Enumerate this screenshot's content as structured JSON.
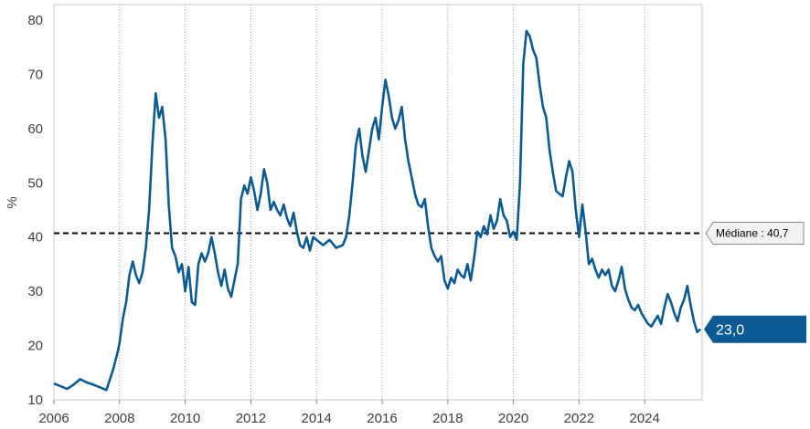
{
  "chart_data": {
    "type": "line",
    "ylabel": "%",
    "xlim": [
      2006,
      2025.75
    ],
    "ylim": [
      10,
      80
    ],
    "x_ticks": [
      "2006",
      "2008",
      "2010",
      "2012",
      "2014",
      "2016",
      "2018",
      "2020",
      "2022",
      "2024"
    ],
    "y_ticks": [
      "10",
      "20",
      "30",
      "40",
      "50",
      "60",
      "70",
      "80"
    ],
    "grid": "vertical dotted",
    "series": [
      {
        "color": "#0b5a94",
        "points": [
          [
            2006.0,
            13.0
          ],
          [
            2006.2,
            12.5
          ],
          [
            2006.4,
            12.0
          ],
          [
            2006.6,
            12.8
          ],
          [
            2006.8,
            13.8
          ],
          [
            2007.0,
            13.2
          ],
          [
            2007.2,
            12.8
          ],
          [
            2007.4,
            12.3
          ],
          [
            2007.6,
            11.8
          ],
          [
            2007.8,
            15.5
          ],
          [
            2007.95,
            19.0
          ],
          [
            2008.0,
            20.5
          ],
          [
            2008.1,
            25.0
          ],
          [
            2008.2,
            28.0
          ],
          [
            2008.3,
            33.0
          ],
          [
            2008.4,
            35.5
          ],
          [
            2008.5,
            33.0
          ],
          [
            2008.6,
            31.5
          ],
          [
            2008.7,
            33.5
          ],
          [
            2008.8,
            38.0
          ],
          [
            2008.9,
            45.0
          ],
          [
            2009.0,
            57.0
          ],
          [
            2009.1,
            66.5
          ],
          [
            2009.2,
            62.0
          ],
          [
            2009.3,
            64.0
          ],
          [
            2009.4,
            58.0
          ],
          [
            2009.5,
            46.0
          ],
          [
            2009.6,
            38.0
          ],
          [
            2009.7,
            36.5
          ],
          [
            2009.8,
            33.5
          ],
          [
            2009.9,
            35.0
          ],
          [
            2010.0,
            30.0
          ],
          [
            2010.1,
            34.5
          ],
          [
            2010.2,
            28.0
          ],
          [
            2010.3,
            27.5
          ],
          [
            2010.4,
            35.0
          ],
          [
            2010.5,
            37.0
          ],
          [
            2010.6,
            35.5
          ],
          [
            2010.7,
            37.0
          ],
          [
            2010.8,
            40.0
          ],
          [
            2010.9,
            37.0
          ],
          [
            2011.0,
            33.5
          ],
          [
            2011.1,
            31.0
          ],
          [
            2011.2,
            34.0
          ],
          [
            2011.3,
            30.5
          ],
          [
            2011.4,
            29.0
          ],
          [
            2011.5,
            32.0
          ],
          [
            2011.6,
            35.0
          ],
          [
            2011.7,
            47.0
          ],
          [
            2011.8,
            49.5
          ],
          [
            2011.9,
            48.0
          ],
          [
            2012.0,
            51.0
          ],
          [
            2012.1,
            48.5
          ],
          [
            2012.2,
            45.0
          ],
          [
            2012.3,
            48.0
          ],
          [
            2012.4,
            52.5
          ],
          [
            2012.5,
            50.0
          ],
          [
            2012.6,
            45.0
          ],
          [
            2012.7,
            46.5
          ],
          [
            2012.8,
            45.0
          ],
          [
            2012.9,
            44.0
          ],
          [
            2013.0,
            46.0
          ],
          [
            2013.1,
            43.5
          ],
          [
            2013.2,
            42.0
          ],
          [
            2013.3,
            44.5
          ],
          [
            2013.4,
            41.0
          ],
          [
            2013.5,
            38.5
          ],
          [
            2013.6,
            38.0
          ],
          [
            2013.7,
            40.0
          ],
          [
            2013.8,
            37.5
          ],
          [
            2013.9,
            40.0
          ],
          [
            2014.0,
            39.5
          ],
          [
            2014.2,
            38.5
          ],
          [
            2014.4,
            39.5
          ],
          [
            2014.6,
            38.0
          ],
          [
            2014.8,
            38.5
          ],
          [
            2014.9,
            40.0
          ],
          [
            2015.0,
            44.0
          ],
          [
            2015.1,
            50.0
          ],
          [
            2015.2,
            57.0
          ],
          [
            2015.3,
            60.0
          ],
          [
            2015.4,
            55.0
          ],
          [
            2015.5,
            52.0
          ],
          [
            2015.6,
            56.0
          ],
          [
            2015.7,
            60.0
          ],
          [
            2015.8,
            62.0
          ],
          [
            2015.9,
            58.0
          ],
          [
            2016.0,
            64.0
          ],
          [
            2016.1,
            69.0
          ],
          [
            2016.2,
            66.0
          ],
          [
            2016.3,
            62.0
          ],
          [
            2016.4,
            60.0
          ],
          [
            2016.5,
            61.5
          ],
          [
            2016.6,
            64.0
          ],
          [
            2016.7,
            58.0
          ],
          [
            2016.8,
            54.0
          ],
          [
            2016.9,
            51.0
          ],
          [
            2017.0,
            48.0
          ],
          [
            2017.1,
            46.0
          ],
          [
            2017.2,
            45.5
          ],
          [
            2017.3,
            47.0
          ],
          [
            2017.4,
            42.0
          ],
          [
            2017.5,
            38.0
          ],
          [
            2017.6,
            36.5
          ],
          [
            2017.7,
            35.5
          ],
          [
            2017.8,
            36.5
          ],
          [
            2017.9,
            32.0
          ],
          [
            2018.0,
            30.5
          ],
          [
            2018.1,
            32.5
          ],
          [
            2018.2,
            31.5
          ],
          [
            2018.3,
            34.0
          ],
          [
            2018.4,
            33.0
          ],
          [
            2018.5,
            32.5
          ],
          [
            2018.6,
            35.0
          ],
          [
            2018.7,
            32.0
          ],
          [
            2018.8,
            36.0
          ],
          [
            2018.9,
            41.0
          ],
          [
            2019.0,
            40.0
          ],
          [
            2019.1,
            42.0
          ],
          [
            2019.2,
            40.5
          ],
          [
            2019.3,
            44.0
          ],
          [
            2019.4,
            41.5
          ],
          [
            2019.5,
            43.0
          ],
          [
            2019.6,
            47.0
          ],
          [
            2019.7,
            44.0
          ],
          [
            2019.8,
            43.0
          ],
          [
            2019.9,
            40.0
          ],
          [
            2020.0,
            41.0
          ],
          [
            2020.1,
            39.5
          ],
          [
            2020.2,
            50.0
          ],
          [
            2020.3,
            72.0
          ],
          [
            2020.4,
            78.0
          ],
          [
            2020.5,
            77.0
          ],
          [
            2020.6,
            74.5
          ],
          [
            2020.7,
            73.0
          ],
          [
            2020.8,
            68.0
          ],
          [
            2020.9,
            64.0
          ],
          [
            2021.0,
            62.0
          ],
          [
            2021.1,
            56.0
          ],
          [
            2021.2,
            52.0
          ],
          [
            2021.3,
            48.5
          ],
          [
            2021.4,
            48.0
          ],
          [
            2021.5,
            47.5
          ],
          [
            2021.6,
            51.0
          ],
          [
            2021.7,
            54.0
          ],
          [
            2021.8,
            52.0
          ],
          [
            2021.9,
            45.0
          ],
          [
            2022.0,
            40.0
          ],
          [
            2022.1,
            46.0
          ],
          [
            2022.2,
            41.0
          ],
          [
            2022.3,
            35.0
          ],
          [
            2022.4,
            36.0
          ],
          [
            2022.5,
            34.0
          ],
          [
            2022.6,
            32.5
          ],
          [
            2022.7,
            34.0
          ],
          [
            2022.8,
            33.0
          ],
          [
            2022.9,
            34.0
          ],
          [
            2023.0,
            31.0
          ],
          [
            2023.1,
            30.0
          ],
          [
            2023.2,
            32.0
          ],
          [
            2023.3,
            34.5
          ],
          [
            2023.4,
            30.5
          ],
          [
            2023.5,
            28.5
          ],
          [
            2023.6,
            27.0
          ],
          [
            2023.7,
            26.5
          ],
          [
            2023.8,
            27.5
          ],
          [
            2023.9,
            26.0
          ],
          [
            2024.0,
            25.0
          ],
          [
            2024.1,
            24.0
          ],
          [
            2024.2,
            23.5
          ],
          [
            2024.3,
            24.5
          ],
          [
            2024.4,
            25.5
          ],
          [
            2024.5,
            24.0
          ],
          [
            2024.6,
            27.0
          ],
          [
            2024.7,
            29.5
          ],
          [
            2024.8,
            28.0
          ],
          [
            2024.9,
            26.0
          ],
          [
            2025.0,
            24.5
          ],
          [
            2025.1,
            27.0
          ],
          [
            2025.2,
            28.5
          ],
          [
            2025.3,
            31.0
          ],
          [
            2025.4,
            27.5
          ],
          [
            2025.5,
            24.5
          ],
          [
            2025.6,
            22.5
          ],
          [
            2025.7,
            23.0
          ]
        ]
      }
    ],
    "median": {
      "value": 40.7,
      "label": "Médiane : 40,7"
    },
    "last_value_label": "23,0",
    "colors": {
      "line": "#0b5a94",
      "median": "#000000",
      "last_box": "#0b5a94"
    }
  }
}
